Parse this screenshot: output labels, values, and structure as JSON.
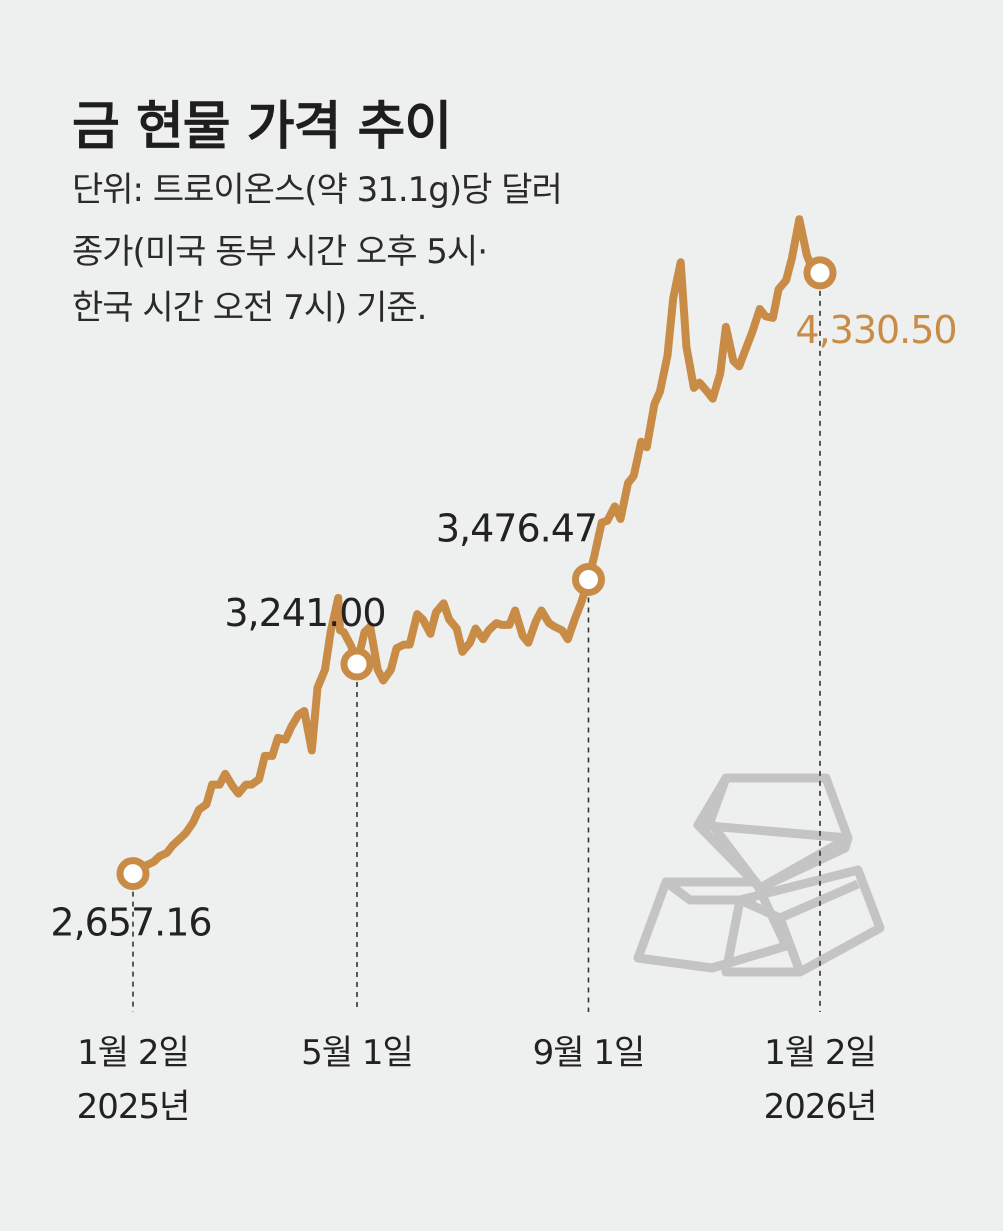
{
  "header": {
    "title": "금 현물 가격 추이",
    "unit_note": "단위: 트로이온스(약 31.1g)당 달러",
    "basis_line1": "종가(미국 동부 시간 오후 5시·",
    "basis_line2": "한국 시간 오전 7시) 기준."
  },
  "colors": {
    "line": "#c98c47",
    "highlight_label": "#c98c47",
    "text": "#222222",
    "background": "#eef0ef",
    "icon": "#c4c4c4"
  },
  "decoration": {
    "icon": "gold-bars-icon"
  },
  "chart_data": {
    "type": "line",
    "title": "금 현물 가격 추이",
    "ylabel": "단위: 트로이온스(약 31.1g)당 달러",
    "ylim": [
      2500,
      4450
    ],
    "xlim": [
      "2025-01-02",
      "2026-01-02"
    ],
    "grid": false,
    "x_ticks": [
      {
        "date": "2025-01-02",
        "label": "1월 2일",
        "sub": "2025년"
      },
      {
        "date": "2025-05-01",
        "label": "5월 1일",
        "sub": ""
      },
      {
        "date": "2025-09-01",
        "label": "9월 1일",
        "sub": ""
      },
      {
        "date": "2026-01-02",
        "label": "1월 2일",
        "sub": "2026년"
      }
    ],
    "annotations": [
      {
        "date": "2025-01-02",
        "value": 2657.16,
        "label": "2,657.16",
        "highlight": false
      },
      {
        "date": "2025-05-01",
        "value": 3241.0,
        "label": "3,241.00",
        "highlight": false
      },
      {
        "date": "2025-09-01",
        "value": 3476.47,
        "label": "3,476.47",
        "highlight": false
      },
      {
        "date": "2026-01-02",
        "value": 4330.5,
        "label": "4,330.50",
        "highlight": true
      }
    ],
    "series": [
      {
        "x": [
          "2025-01-02",
          "2025-01-06",
          "2025-01-09",
          "2025-01-13",
          "2025-01-16",
          "2025-01-20",
          "2025-01-23",
          "2025-01-27",
          "2025-01-30",
          "2025-02-03",
          "2025-02-06",
          "2025-02-10",
          "2025-02-13",
          "2025-02-17",
          "2025-02-20",
          "2025-02-24",
          "2025-02-27",
          "2025-03-03",
          "2025-03-06",
          "2025-03-10",
          "2025-03-13",
          "2025-03-17",
          "2025-03-20",
          "2025-03-24",
          "2025-03-27",
          "2025-03-31",
          "2025-04-03",
          "2025-04-07",
          "2025-04-10",
          "2025-04-14",
          "2025-04-17",
          "2025-04-21",
          "2025-04-22",
          "2025-04-24",
          "2025-04-28",
          "2025-05-01",
          "2025-05-05",
          "2025-05-08",
          "2025-05-12",
          "2025-05-15",
          "2025-05-19",
          "2025-05-22",
          "2025-05-26",
          "2025-05-29",
          "2025-06-02",
          "2025-06-05",
          "2025-06-09",
          "2025-06-12",
          "2025-06-16",
          "2025-06-19",
          "2025-06-23",
          "2025-06-26",
          "2025-06-30",
          "2025-07-03",
          "2025-07-07",
          "2025-07-10",
          "2025-07-14",
          "2025-07-17",
          "2025-07-21",
          "2025-07-24",
          "2025-07-28",
          "2025-07-31",
          "2025-08-04",
          "2025-08-07",
          "2025-08-11",
          "2025-08-14",
          "2025-08-18",
          "2025-08-21",
          "2025-08-25",
          "2025-08-28",
          "2025-09-01",
          "2025-09-04",
          "2025-09-08",
          "2025-09-11",
          "2025-09-15",
          "2025-09-18",
          "2025-09-22",
          "2025-09-25",
          "2025-09-29",
          "2025-10-02",
          "2025-10-06",
          "2025-10-09",
          "2025-10-13",
          "2025-10-16",
          "2025-10-20",
          "2025-10-23",
          "2025-10-27",
          "2025-10-30",
          "2025-11-03",
          "2025-11-06",
          "2025-11-10",
          "2025-11-13",
          "2025-11-17",
          "2025-11-20",
          "2025-11-24",
          "2025-11-27",
          "2025-12-01",
          "2025-12-04",
          "2025-12-08",
          "2025-12-11",
          "2025-12-15",
          "2025-12-18",
          "2025-12-22",
          "2025-12-26",
          "2025-12-29",
          "2025-12-31",
          "2026-01-02"
        ],
        "values": [
          2657.16,
          2660,
          2680,
          2690,
          2705,
          2715,
          2735,
          2755,
          2770,
          2800,
          2835,
          2850,
          2905,
          2905,
          2935,
          2900,
          2880,
          2905,
          2905,
          2920,
          2985,
          2985,
          3035,
          3030,
          3065,
          3100,
          3110,
          3000,
          3175,
          3225,
          3330,
          3425,
          3335,
          3330,
          3290,
          3241.0,
          3330,
          3345,
          3225,
          3195,
          3225,
          3285,
          3295,
          3295,
          3380,
          3365,
          3325,
          3385,
          3410,
          3365,
          3340,
          3275,
          3300,
          3340,
          3310,
          3335,
          3355,
          3350,
          3350,
          3390,
          3320,
          3300,
          3360,
          3390,
          3355,
          3345,
          3335,
          3310,
          3370,
          3410,
          3476.47,
          3540,
          3635,
          3640,
          3680,
          3645,
          3745,
          3765,
          3860,
          3845,
          3965,
          4000,
          4100,
          4260,
          4360,
          4125,
          4010,
          4025,
          4000,
          3980,
          4050,
          4180,
          4085,
          4070,
          4125,
          4165,
          4230,
          4210,
          4205,
          4285,
          4310,
          4370,
          4480,
          4380,
          4340,
          4335,
          4330.5
        ]
      }
    ]
  }
}
